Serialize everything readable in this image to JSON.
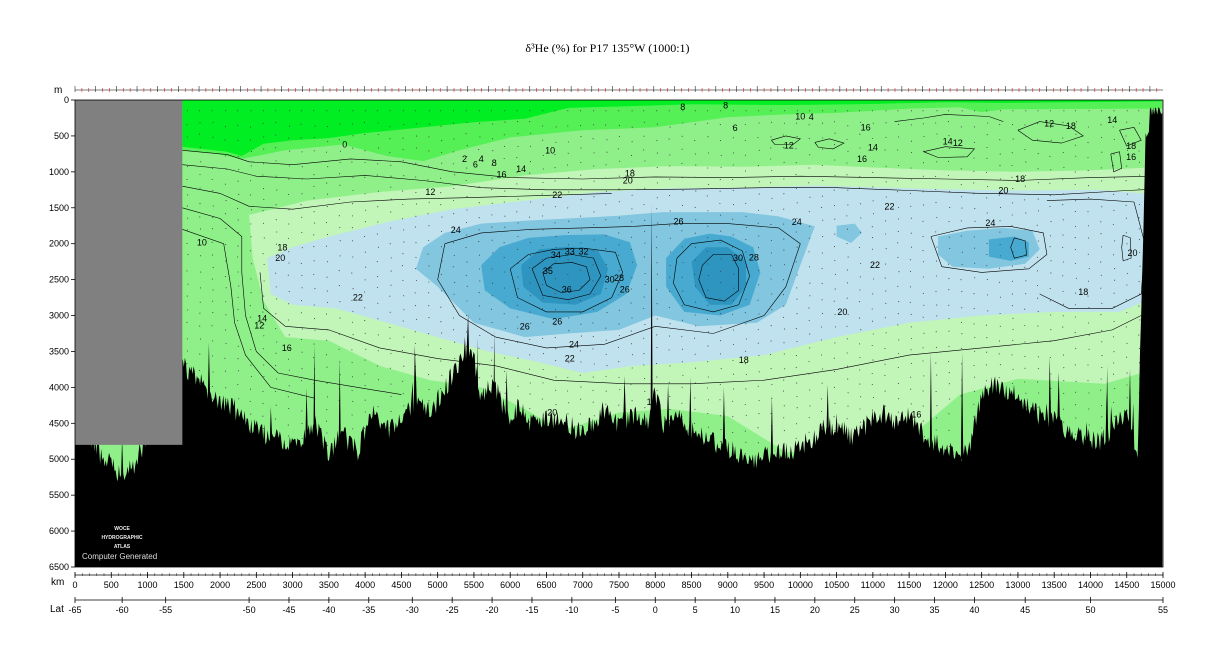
{
  "title": "δ³He (%) for P17 135°W (1000:1)",
  "watermark": {
    "line1": "WOCE",
    "line2": "HYDROGRAPHIC",
    "line3": "ATLAS",
    "line4": "Computer Generated"
  },
  "colors": {
    "level_0": "#00ee22",
    "level_1": "#55f055",
    "level_2": "#8ff08a",
    "level_3": "#c2f5b8",
    "level_4": "#c0e2ee",
    "level_5": "#82c6e0",
    "level_6": "#48aad0",
    "level_7": "#2e95c0",
    "bottom": "#000000",
    "land": "#808080"
  },
  "chart_data": {
    "type": "heatmap",
    "title": "δ³He (%) for P17 135°W (1000:1)",
    "xlabel": "km",
    "ylabel": "m",
    "secondary_xlabel": "Lat",
    "xlim": [
      0,
      15000
    ],
    "ylim": [
      6500,
      0
    ],
    "x_ticks": [
      0,
      500,
      1000,
      1500,
      2000,
      2500,
      3000,
      3500,
      4000,
      4500,
      5000,
      5500,
      6000,
      6500,
      7000,
      7500,
      8000,
      8500,
      9000,
      9500,
      10000,
      10500,
      11000,
      11500,
      12000,
      12500,
      13000,
      13500,
      14000,
      14500,
      15000
    ],
    "y_ticks": [
      0,
      500,
      1000,
      1500,
      2000,
      2500,
      3000,
      3500,
      4000,
      4500,
      5000,
      5500,
      6000,
      6500
    ],
    "lat_ticks": [
      {
        "label": "-65",
        "km": 0
      },
      {
        "label": "-60",
        "km": 650
      },
      {
        "label": "-55",
        "km": 1250
      },
      {
        "label": "-50",
        "km": 2400
      },
      {
        "label": "-45",
        "km": 2950
      },
      {
        "label": "-40",
        "km": 3500
      },
      {
        "label": "-35",
        "km": 4050
      },
      {
        "label": "-30",
        "km": 4650
      },
      {
        "label": "-25",
        "km": 5200
      },
      {
        "label": "-20",
        "km": 5750
      },
      {
        "label": "-15",
        "km": 6300
      },
      {
        "label": "-10",
        "km": 6850
      },
      {
        "label": "-5",
        "km": 7450
      },
      {
        "label": "0",
        "km": 8000
      },
      {
        "label": "5",
        "km": 8550
      },
      {
        "label": "10",
        "km": 9100
      },
      {
        "label": "15",
        "km": 9650
      },
      {
        "label": "20",
        "km": 10200
      },
      {
        "label": "25",
        "km": 10750
      },
      {
        "label": "30",
        "km": 11300
      },
      {
        "label": "35",
        "km": 11850
      },
      {
        "label": "40",
        "km": 12400
      },
      {
        "label": "45",
        "km": 13100
      },
      {
        "label": "50",
        "km": 14000
      },
      {
        "label": "55",
        "km": 15000
      }
    ],
    "color_levels": [
      0,
      2,
      10,
      16,
      20,
      24,
      28,
      32
    ],
    "contour_labels": [
      {
        "text": "0",
        "km": 3720,
        "depth": 620
      },
      {
        "text": "2",
        "km": 5370,
        "depth": 820
      },
      {
        "text": "4",
        "km": 5600,
        "depth": 820
      },
      {
        "text": "6",
        "km": 5520,
        "depth": 900
      },
      {
        "text": "8",
        "km": 5780,
        "depth": 880
      },
      {
        "text": "10",
        "km": 6550,
        "depth": 700
      },
      {
        "text": "14",
        "km": 6150,
        "depth": 960
      },
      {
        "text": "16",
        "km": 5880,
        "depth": 1040
      },
      {
        "text": "12",
        "km": 4900,
        "depth": 1280
      },
      {
        "text": "10",
        "km": 1750,
        "depth": 1980
      },
      {
        "text": "18",
        "km": 7650,
        "depth": 1020
      },
      {
        "text": "20",
        "km": 7620,
        "depth": 1120
      },
      {
        "text": "22",
        "km": 6650,
        "depth": 1320
      },
      {
        "text": "24",
        "km": 5250,
        "depth": 1810
      },
      {
        "text": "26",
        "km": 8320,
        "depth": 1690
      },
      {
        "text": "24",
        "km": 9950,
        "depth": 1700
      },
      {
        "text": "34",
        "km": 6630,
        "depth": 2160
      },
      {
        "text": "33",
        "km": 6820,
        "depth": 2110
      },
      {
        "text": "32",
        "km": 7010,
        "depth": 2110
      },
      {
        "text": "35",
        "km": 6520,
        "depth": 2380
      },
      {
        "text": "36",
        "km": 6780,
        "depth": 2640
      },
      {
        "text": "30",
        "km": 7370,
        "depth": 2500
      },
      {
        "text": "28",
        "km": 7500,
        "depth": 2480
      },
      {
        "text": "26",
        "km": 7580,
        "depth": 2640
      },
      {
        "text": "30",
        "km": 9140,
        "depth": 2200
      },
      {
        "text": "28",
        "km": 9360,
        "depth": 2190
      },
      {
        "text": "22",
        "km": 3900,
        "depth": 2750
      },
      {
        "text": "18",
        "km": 2860,
        "depth": 2050
      },
      {
        "text": "20",
        "km": 2830,
        "depth": 2200
      },
      {
        "text": "14",
        "km": 2580,
        "depth": 3040
      },
      {
        "text": "12",
        "km": 2540,
        "depth": 3140
      },
      {
        "text": "16",
        "km": 2920,
        "depth": 3450
      },
      {
        "text": "26",
        "km": 6200,
        "depth": 3150
      },
      {
        "text": "26",
        "km": 6650,
        "depth": 3080
      },
      {
        "text": "24",
        "km": 6880,
        "depth": 3400
      },
      {
        "text": "22",
        "km": 6820,
        "depth": 3600
      },
      {
        "text": "20",
        "km": 6580,
        "depth": 4350
      },
      {
        "text": "18",
        "km": 9220,
        "depth": 3620
      },
      {
        "text": "20",
        "km": 10580,
        "depth": 2950
      },
      {
        "text": "22",
        "km": 11030,
        "depth": 2300
      },
      {
        "text": "22",
        "km": 11230,
        "depth": 1480
      },
      {
        "text": "24",
        "km": 12620,
        "depth": 1710
      },
      {
        "text": "20",
        "km": 12800,
        "depth": 1260
      },
      {
        "text": "18",
        "km": 13030,
        "depth": 1100
      },
      {
        "text": "18",
        "km": 13900,
        "depth": 2670
      },
      {
        "text": "20",
        "km": 14580,
        "depth": 2130
      },
      {
        "text": "16",
        "km": 10900,
        "depth": 380
      },
      {
        "text": "16",
        "km": 10850,
        "depth": 820
      },
      {
        "text": "14",
        "km": 11000,
        "depth": 660
      },
      {
        "text": "12",
        "km": 9840,
        "depth": 630
      },
      {
        "text": "14",
        "km": 12030,
        "depth": 580
      },
      {
        "text": "12",
        "km": 12170,
        "depth": 600
      },
      {
        "text": "12",
        "km": 13430,
        "depth": 330
      },
      {
        "text": "18",
        "km": 13730,
        "depth": 360
      },
      {
        "text": "14",
        "km": 14300,
        "depth": 280
      },
      {
        "text": "18",
        "km": 14560,
        "depth": 640
      },
      {
        "text": "16",
        "km": 14560,
        "depth": 790
      },
      {
        "text": "16",
        "km": 11600,
        "depth": 4380
      },
      {
        "text": "6",
        "km": 9100,
        "depth": 390
      },
      {
        "text": "8",
        "km": 8970,
        "depth": 80
      },
      {
        "text": "8",
        "km": 8380,
        "depth": 100
      },
      {
        "text": "4",
        "km": 10150,
        "depth": 240
      },
      {
        "text": "10",
        "km": 10000,
        "depth": 230
      },
      {
        "text": "14",
        "km": 7950,
        "depth": 4200
      }
    ]
  }
}
